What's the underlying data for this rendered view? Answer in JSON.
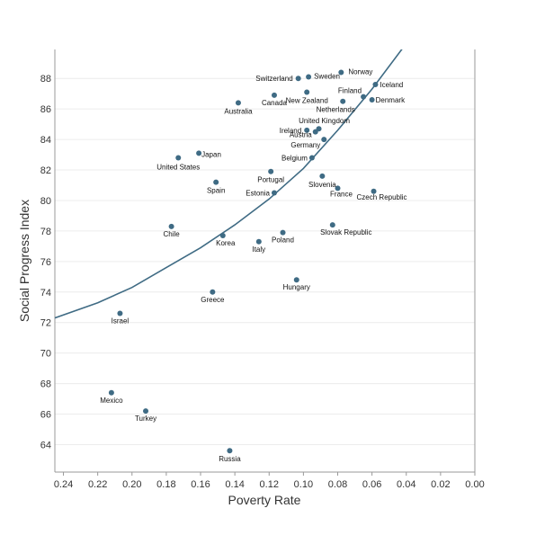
{
  "chart_data": {
    "type": "scatter",
    "xlabel": "Poverty Rate",
    "ylabel": "Social Progress Index",
    "xlim": [
      0.245,
      0.0
    ],
    "ylim": [
      62.2,
      89.9
    ],
    "x_reversed": true,
    "x_ticks": [
      0.24,
      0.22,
      0.2,
      0.18,
      0.16,
      0.14,
      0.12,
      0.1,
      0.08,
      0.06,
      0.04,
      0.02,
      0.0
    ],
    "x_tick_labels": [
      "0.24",
      "0.22",
      "0.20",
      "0.18",
      "0.16",
      "0.14",
      "0.12",
      "0.10",
      "0.08",
      "0.06",
      "0.04",
      "0.02",
      "0.00"
    ],
    "y_ticks": [
      64,
      66,
      68,
      70,
      72,
      74,
      76,
      78,
      80,
      82,
      84,
      86,
      88
    ],
    "y_tick_labels": [
      "64",
      "66",
      "68",
      "70",
      "72",
      "74",
      "76",
      "78",
      "80",
      "82",
      "84",
      "86",
      "88"
    ],
    "grid": "horizontal",
    "point_color": "#3f6b84",
    "trend_color": "#3f6b84",
    "points": [
      {
        "label": "Norway",
        "x": 0.078,
        "y": 88.4
      },
      {
        "label": "Sweden",
        "x": 0.097,
        "y": 88.1
      },
      {
        "label": "Switzerland",
        "x": 0.103,
        "y": 88.0
      },
      {
        "label": "Iceland",
        "x": 0.058,
        "y": 87.6
      },
      {
        "label": "Finland",
        "x": 0.065,
        "y": 86.8
      },
      {
        "label": "Canada",
        "x": 0.117,
        "y": 86.9
      },
      {
        "label": "New Zealand",
        "x": 0.098,
        "y": 87.1
      },
      {
        "label": "Denmark",
        "x": 0.06,
        "y": 86.6
      },
      {
        "label": "Netherlands",
        "x": 0.077,
        "y": 86.5
      },
      {
        "label": "Australia",
        "x": 0.138,
        "y": 86.4
      },
      {
        "label": "United Kingdom",
        "x": 0.091,
        "y": 84.7
      },
      {
        "label": "Ireland",
        "x": 0.098,
        "y": 84.6
      },
      {
        "label": "Austria",
        "x": 0.093,
        "y": 84.5
      },
      {
        "label": "Germany",
        "x": 0.088,
        "y": 84.0
      },
      {
        "label": "Japan",
        "x": 0.161,
        "y": 83.1
      },
      {
        "label": "United States",
        "x": 0.173,
        "y": 82.8
      },
      {
        "label": "Belgium",
        "x": 0.095,
        "y": 82.8
      },
      {
        "label": "Portugal",
        "x": 0.119,
        "y": 81.9
      },
      {
        "label": "Slovenia",
        "x": 0.089,
        "y": 81.6
      },
      {
        "label": "Spain",
        "x": 0.151,
        "y": 81.2
      },
      {
        "label": "France",
        "x": 0.08,
        "y": 80.8
      },
      {
        "label": "Czech Republic",
        "x": 0.059,
        "y": 80.6
      },
      {
        "label": "Estonia",
        "x": 0.117,
        "y": 80.5
      },
      {
        "label": "Chile",
        "x": 0.177,
        "y": 78.3
      },
      {
        "label": "Slovak Republic",
        "x": 0.083,
        "y": 78.4
      },
      {
        "label": "Poland",
        "x": 0.112,
        "y": 77.9
      },
      {
        "label": "Korea",
        "x": 0.147,
        "y": 77.7
      },
      {
        "label": "Italy",
        "x": 0.126,
        "y": 77.3
      },
      {
        "label": "Hungary",
        "x": 0.104,
        "y": 74.8
      },
      {
        "label": "Greece",
        "x": 0.153,
        "y": 74.0
      },
      {
        "label": "Israel",
        "x": 0.207,
        "y": 72.6
      },
      {
        "label": "Mexico",
        "x": 0.212,
        "y": 67.4
      },
      {
        "label": "Turkey",
        "x": 0.192,
        "y": 66.2
      },
      {
        "label": "Russia",
        "x": 0.143,
        "y": 63.6
      }
    ],
    "trend_line": [
      {
        "x": 0.245,
        "y": 72.3
      },
      {
        "x": 0.22,
        "y": 73.3
      },
      {
        "x": 0.2,
        "y": 74.3
      },
      {
        "x": 0.18,
        "y": 75.6
      },
      {
        "x": 0.16,
        "y": 76.9
      },
      {
        "x": 0.14,
        "y": 78.4
      },
      {
        "x": 0.12,
        "y": 80.1
      },
      {
        "x": 0.1,
        "y": 82.1
      },
      {
        "x": 0.08,
        "y": 84.6
      },
      {
        "x": 0.06,
        "y": 87.3
      },
      {
        "x": 0.04,
        "y": 90.3
      }
    ]
  }
}
